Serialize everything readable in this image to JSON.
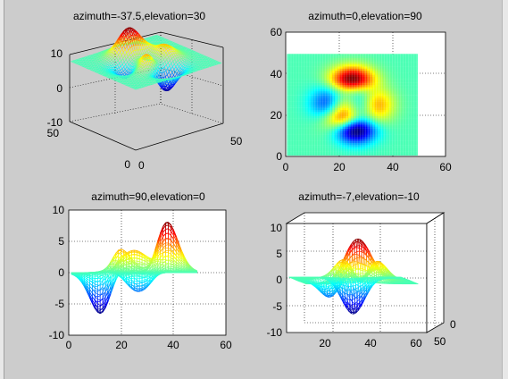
{
  "figure": {
    "background": "#cccccc",
    "colormap": "jet"
  },
  "chart_data": [
    {
      "type": "surface3d",
      "title": "azimuth=-37.5,elevation=30",
      "view": {
        "azimuth": -37.5,
        "elevation": 30
      },
      "function": "peaks",
      "grid_size": 49,
      "x_range": [
        1,
        49
      ],
      "y_range": [
        1,
        49
      ],
      "z_range": [
        -6.55,
        8.1
      ],
      "xticks": [
        "0",
        "50"
      ],
      "yticks": [
        "0",
        "50"
      ],
      "zticks": [
        "10",
        "0",
        "-10"
      ],
      "grid": true
    },
    {
      "type": "surface3d",
      "title": "azimuth=0,elevation=90",
      "view": {
        "azimuth": 0,
        "elevation": 90
      },
      "function": "peaks",
      "grid_size": 49,
      "xlim": [
        0,
        60
      ],
      "ylim": [
        0,
        60
      ],
      "xticks": [
        "0",
        "20",
        "40",
        "60"
      ],
      "yticks": [
        "0",
        "20",
        "40",
        "60"
      ],
      "grid": true
    },
    {
      "type": "surface3d",
      "title": "azimuth=90,elevation=0",
      "view": {
        "azimuth": 90,
        "elevation": 0
      },
      "function": "peaks",
      "grid_size": 49,
      "xlim": [
        0,
        60
      ],
      "ylim": [
        -10,
        10
      ],
      "xticks": [
        "0",
        "20",
        "40",
        "60"
      ],
      "yticks": [
        "10",
        "5",
        "0",
        "-5",
        "-10"
      ],
      "grid": true
    },
    {
      "type": "surface3d",
      "title": "azimuth=-7,elevation=-10",
      "view": {
        "azimuth": -7,
        "elevation": -10
      },
      "function": "peaks",
      "grid_size": 49,
      "xlim": [
        0,
        60
      ],
      "zlim": [
        -10,
        10
      ],
      "xticks": [
        "20",
        "40",
        "60"
      ],
      "yticks": [
        "0",
        "50"
      ],
      "zticks": [
        "10",
        "5",
        "0",
        "-5",
        "-10"
      ],
      "grid": true
    }
  ]
}
